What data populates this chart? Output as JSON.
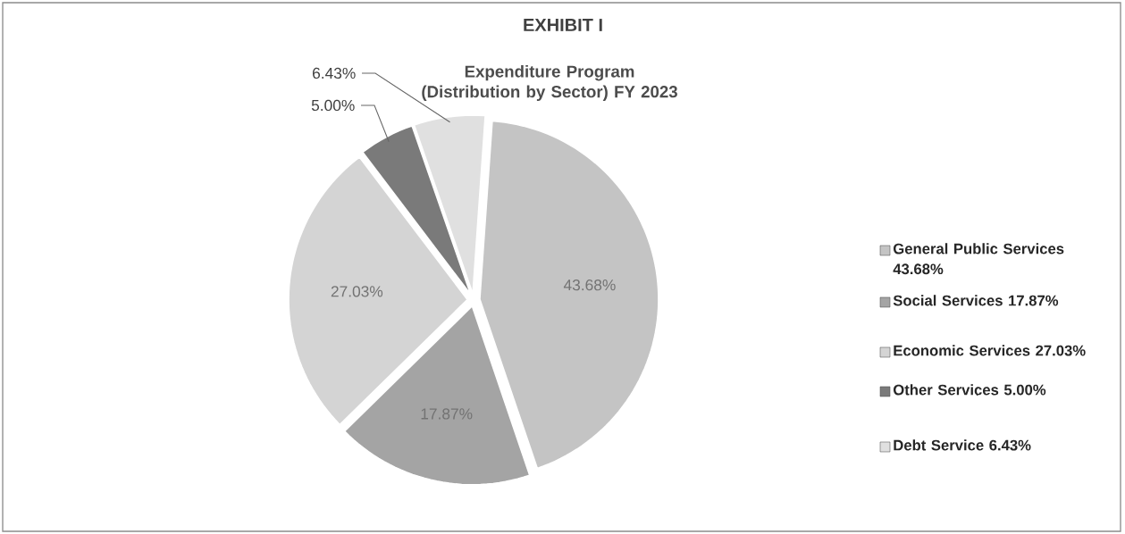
{
  "chart_data": {
    "type": "pie",
    "title": "EXHIBIT I",
    "subtitle": "Expenditure Program (Distribution by Sector) FY 2023",
    "categories": [
      "General Public Services 43.68%",
      "Social Services 17.87%",
      "Economic Services 27.03%",
      "Other Services 5.00%",
      "Debt Service 6.43%"
    ],
    "values": [
      43.68,
      17.87,
      27.03,
      5.0,
      6.43
    ],
    "value_labels": [
      "43.68%",
      "17.87%",
      "27.03%",
      "5.00%",
      "6.43%"
    ],
    "colors": [
      "#c4c4c4",
      "#a4a4a4",
      "#d4d4d4",
      "#7a7a7a",
      "#e0e0e0"
    ],
    "legend": "right"
  }
}
